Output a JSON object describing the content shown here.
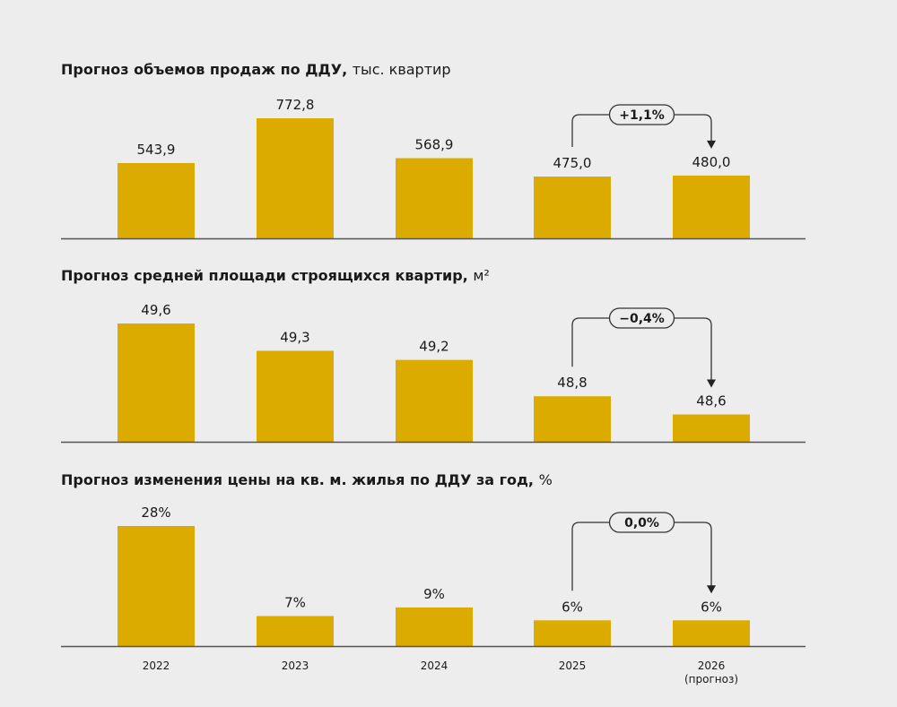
{
  "colors": {
    "bar": "#dcab00",
    "axis": "#555555",
    "text": "#1a1a1a"
  },
  "x_labels": [
    "2022",
    "2023",
    "2024",
    "2025",
    "2026"
  ],
  "x_sublabel_last": "(прогноз)",
  "chart_data": [
    {
      "type": "bar",
      "title": "Прогноз объемов продаж по ДДУ,",
      "unit": "тыс. квартир",
      "categories": [
        "2022",
        "2023",
        "2024",
        "2025",
        "2026 (прогноз)"
      ],
      "values": [
        543.9,
        772.8,
        568.9,
        475.0,
        480.0
      ],
      "labels": [
        "543,9",
        "772,8",
        "568,9",
        "475,0",
        "480,0"
      ],
      "ylim": [
        159,
        772.8
      ],
      "annotation": "+1,1%"
    },
    {
      "type": "bar",
      "title": "Прогноз средней площади строящихся квартир,",
      "unit": "м²",
      "categories": [
        "2022",
        "2023",
        "2024",
        "2025",
        "2026 (прогноз)"
      ],
      "values": [
        49.6,
        49.3,
        49.2,
        48.8,
        48.6
      ],
      "labels": [
        "49,6",
        "49,3",
        "49,2",
        "48,8",
        "48,6"
      ],
      "ylim": [
        48.3,
        49.6
      ],
      "annotation": "−0,4%"
    },
    {
      "type": "bar",
      "title": "Прогноз изменения цены на кв. м. жилья по ДДУ за год,",
      "unit": "%",
      "categories": [
        "2022",
        "2023",
        "2024",
        "2025",
        "2026 (прогноз)"
      ],
      "values": [
        28,
        7,
        9,
        6,
        6
      ],
      "labels": [
        "28%",
        "7%",
        "9%",
        "6%",
        "6%"
      ],
      "ylim": [
        0,
        28
      ],
      "annotation": "0,0%"
    }
  ]
}
